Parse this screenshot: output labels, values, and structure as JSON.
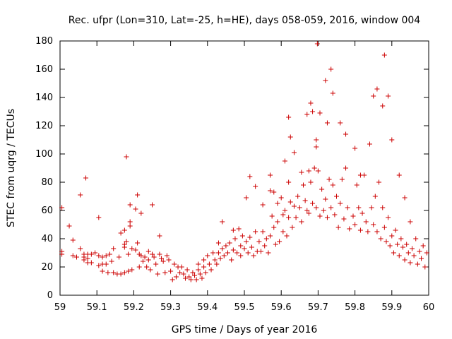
{
  "chart_data": {
    "type": "scatter",
    "title": "Rec. ufpr (Lon=310, Lat=-25, h=HE), days 058-059, 2016, window 004",
    "xlabel": "GPS time / Days of year 2016",
    "ylabel": "STEC from uqrg / TECUs",
    "xlim": [
      59,
      60
    ],
    "ylim": [
      0,
      180
    ],
    "xticks": [
      "59",
      "59.1",
      "59.2",
      "59.3",
      "59.4",
      "59.5",
      "59.6",
      "59.7",
      "59.8",
      "59.9",
      "60"
    ],
    "yticks": [
      "0",
      "20",
      "40",
      "60",
      "80",
      "100",
      "120",
      "140",
      "160",
      "180"
    ],
    "marker": "+",
    "color": "#cc0000",
    "series": [
      {
        "name": "STEC",
        "points": [
          [
            59.005,
            62
          ],
          [
            59.005,
            31
          ],
          [
            59.005,
            29
          ],
          [
            59.025,
            49
          ],
          [
            59.035,
            39
          ],
          [
            59.035,
            28
          ],
          [
            59.045,
            27
          ],
          [
            59.055,
            71
          ],
          [
            59.055,
            33
          ],
          [
            59.065,
            29
          ],
          [
            59.065,
            27
          ],
          [
            59.065,
            25
          ],
          [
            59.07,
            83
          ],
          [
            59.075,
            29
          ],
          [
            59.075,
            26
          ],
          [
            59.075,
            23
          ],
          [
            59.085,
            23
          ],
          [
            59.085,
            29
          ],
          [
            59.095,
            30
          ],
          [
            59.105,
            55
          ],
          [
            59.105,
            28
          ],
          [
            59.105,
            21
          ],
          [
            59.115,
            27
          ],
          [
            59.115,
            22
          ],
          [
            59.115,
            17
          ],
          [
            59.125,
            28
          ],
          [
            59.125,
            22
          ],
          [
            59.13,
            16
          ],
          [
            59.135,
            29
          ],
          [
            59.14,
            24
          ],
          [
            59.145,
            16
          ],
          [
            59.145,
            33
          ],
          [
            59.155,
            15
          ],
          [
            59.16,
            27
          ],
          [
            59.165,
            15
          ],
          [
            59.165,
            44
          ],
          [
            59.175,
            36
          ],
          [
            59.175,
            34
          ],
          [
            59.175,
            46
          ],
          [
            59.175,
            16
          ],
          [
            59.18,
            98
          ],
          [
            59.18,
            38
          ],
          [
            59.185,
            29
          ],
          [
            59.185,
            17
          ],
          [
            59.19,
            64
          ],
          [
            59.19,
            52
          ],
          [
            59.19,
            49
          ],
          [
            59.195,
            33
          ],
          [
            59.195,
            18
          ],
          [
            59.205,
            61
          ],
          [
            59.205,
            32
          ],
          [
            59.21,
            71
          ],
          [
            59.21,
            37
          ],
          [
            59.215,
            29
          ],
          [
            59.215,
            20
          ],
          [
            59.22,
            58
          ],
          [
            59.22,
            28
          ],
          [
            59.225,
            24
          ],
          [
            59.23,
            27
          ],
          [
            59.235,
            20
          ],
          [
            59.24,
            31
          ],
          [
            59.24,
            25
          ],
          [
            59.245,
            18
          ],
          [
            59.25,
            64
          ],
          [
            59.25,
            29
          ],
          [
            59.255,
            27
          ],
          [
            59.26,
            22
          ],
          [
            59.265,
            15
          ],
          [
            59.27,
            42
          ],
          [
            59.27,
            29
          ],
          [
            59.275,
            26
          ],
          [
            59.28,
            24
          ],
          [
            59.285,
            16
          ],
          [
            59.29,
            28
          ],
          [
            59.295,
            25
          ],
          [
            59.3,
            17
          ],
          [
            59.305,
            11
          ],
          [
            59.31,
            22
          ],
          [
            59.315,
            13
          ],
          [
            59.32,
            20
          ],
          [
            59.325,
            16
          ],
          [
            59.33,
            20
          ],
          [
            59.335,
            15
          ],
          [
            59.34,
            12
          ],
          [
            59.345,
            18
          ],
          [
            59.35,
            13
          ],
          [
            59.355,
            11
          ],
          [
            59.36,
            16
          ],
          [
            59.365,
            14
          ],
          [
            59.37,
            11
          ],
          [
            59.375,
            22
          ],
          [
            59.375,
            18
          ],
          [
            59.38,
            15
          ],
          [
            59.385,
            12
          ],
          [
            59.39,
            20
          ],
          [
            59.39,
            25
          ],
          [
            59.395,
            16
          ],
          [
            59.4,
            28
          ],
          [
            59.405,
            22
          ],
          [
            59.41,
            18
          ],
          [
            59.415,
            30
          ],
          [
            59.42,
            25
          ],
          [
            59.425,
            22
          ],
          [
            59.43,
            37
          ],
          [
            59.43,
            30
          ],
          [
            59.435,
            26
          ],
          [
            59.44,
            52
          ],
          [
            59.44,
            33
          ],
          [
            59.445,
            28
          ],
          [
            59.45,
            35
          ],
          [
            59.455,
            30
          ],
          [
            59.46,
            37
          ],
          [
            59.465,
            25
          ],
          [
            59.47,
            46
          ],
          [
            59.47,
            32
          ],
          [
            59.475,
            40
          ],
          [
            59.48,
            30
          ],
          [
            59.485,
            47
          ],
          [
            59.49,
            35
          ],
          [
            59.49,
            28
          ],
          [
            59.495,
            42
          ],
          [
            59.5,
            33
          ],
          [
            59.505,
            69
          ],
          [
            59.505,
            38
          ],
          [
            59.51,
            30
          ],
          [
            59.515,
            84
          ],
          [
            59.515,
            41
          ],
          [
            59.52,
            34
          ],
          [
            59.525,
            28
          ],
          [
            59.53,
            77
          ],
          [
            59.53,
            45
          ],
          [
            59.535,
            31
          ],
          [
            59.54,
            38
          ],
          [
            59.545,
            31
          ],
          [
            59.55,
            64
          ],
          [
            59.55,
            45
          ],
          [
            59.555,
            35
          ],
          [
            59.56,
            40
          ],
          [
            59.565,
            30
          ],
          [
            59.57,
            85
          ],
          [
            59.57,
            74
          ],
          [
            59.57,
            42
          ],
          [
            59.575,
            56
          ],
          [
            59.58,
            73
          ],
          [
            59.58,
            48
          ],
          [
            59.585,
            36
          ],
          [
            59.59,
            65
          ],
          [
            59.59,
            52
          ],
          [
            59.595,
            38
          ],
          [
            59.6,
            69
          ],
          [
            59.605,
            57
          ],
          [
            59.605,
            45
          ],
          [
            59.61,
            95
          ],
          [
            59.61,
            60
          ],
          [
            59.615,
            42
          ],
          [
            59.62,
            126
          ],
          [
            59.62,
            80
          ],
          [
            59.62,
            55
          ],
          [
            59.625,
            112
          ],
          [
            59.625,
            66
          ],
          [
            59.63,
            48
          ],
          [
            59.635,
            101
          ],
          [
            59.635,
            63
          ],
          [
            59.64,
            55
          ],
          [
            59.645,
            70
          ],
          [
            59.65,
            62
          ],
          [
            59.655,
            87
          ],
          [
            59.655,
            52
          ],
          [
            59.66,
            78
          ],
          [
            59.665,
            67
          ],
          [
            59.67,
            128
          ],
          [
            59.67,
            60
          ],
          [
            59.675,
            88
          ],
          [
            59.675,
            58
          ],
          [
            59.68,
            136
          ],
          [
            59.68,
            80
          ],
          [
            59.685,
            130
          ],
          [
            59.685,
            65
          ],
          [
            59.69,
            90
          ],
          [
            59.695,
            110
          ],
          [
            59.695,
            105
          ],
          [
            59.695,
            62
          ],
          [
            59.698,
            178
          ],
          [
            59.7,
            88
          ],
          [
            59.705,
            129
          ],
          [
            59.705,
            56
          ],
          [
            59.71,
            75
          ],
          [
            59.715,
            60
          ],
          [
            59.72,
            152
          ],
          [
            59.72,
            68
          ],
          [
            59.725,
            122
          ],
          [
            59.725,
            55
          ],
          [
            59.73,
            82
          ],
          [
            59.735,
            160
          ],
          [
            59.735,
            62
          ],
          [
            59.74,
            143
          ],
          [
            59.74,
            78
          ],
          [
            59.745,
            57
          ],
          [
            59.75,
            70
          ],
          [
            59.755,
            48
          ],
          [
            59.76,
            122
          ],
          [
            59.76,
            65
          ],
          [
            59.765,
            82
          ],
          [
            59.77,
            54
          ],
          [
            59.775,
            114
          ],
          [
            59.775,
            90
          ],
          [
            59.78,
            62
          ],
          [
            59.785,
            47
          ],
          [
            59.795,
            56
          ],
          [
            59.8,
            104
          ],
          [
            59.8,
            50
          ],
          [
            59.805,
            78
          ],
          [
            59.81,
            62
          ],
          [
            59.815,
            85
          ],
          [
            59.815,
            46
          ],
          [
            59.82,
            58
          ],
          [
            59.825,
            85
          ],
          [
            59.83,
            52
          ],
          [
            59.835,
            45
          ],
          [
            59.84,
            107
          ],
          [
            59.845,
            62
          ],
          [
            59.85,
            141
          ],
          [
            59.85,
            50
          ],
          [
            59.855,
            70
          ],
          [
            59.86,
            146
          ],
          [
            59.86,
            45
          ],
          [
            59.865,
            80
          ],
          [
            59.87,
            40
          ],
          [
            59.875,
            134
          ],
          [
            59.875,
            62
          ],
          [
            59.88,
            170
          ],
          [
            59.88,
            48
          ],
          [
            59.885,
            38
          ],
          [
            59.89,
            141
          ],
          [
            59.89,
            55
          ],
          [
            59.895,
            35
          ],
          [
            59.9,
            110
          ],
          [
            59.9,
            42
          ],
          [
            59.905,
            30
          ],
          [
            59.91,
            46
          ],
          [
            59.915,
            36
          ],
          [
            59.92,
            85
          ],
          [
            59.92,
            28
          ],
          [
            59.925,
            40
          ],
          [
            59.93,
            34
          ],
          [
            59.935,
            69
          ],
          [
            59.935,
            25
          ],
          [
            59.94,
            36
          ],
          [
            59.945,
            30
          ],
          [
            59.95,
            52
          ],
          [
            59.95,
            23
          ],
          [
            59.955,
            33
          ],
          [
            59.96,
            28
          ],
          [
            59.965,
            40
          ],
          [
            59.97,
            22
          ],
          [
            59.975,
            31
          ],
          [
            59.98,
            26
          ],
          [
            59.985,
            35
          ],
          [
            59.99,
            20
          ],
          [
            59.995,
            30
          ]
        ]
      }
    ]
  }
}
